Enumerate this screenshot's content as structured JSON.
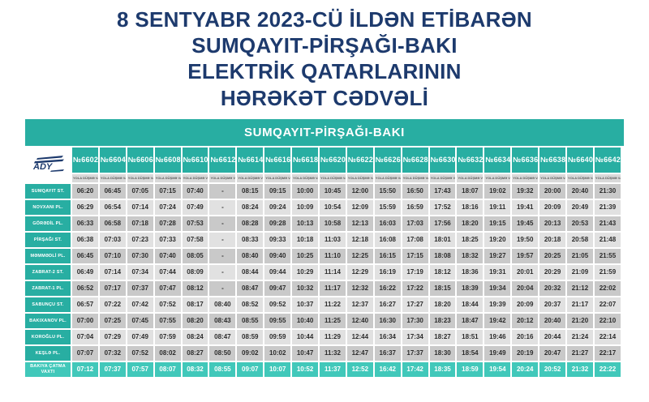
{
  "title": {
    "lines": [
      "8 SENTYABR 2023-CÜ İLDƏN ETİBARƏN",
      "SUMQAYIT-PİRŞAĞI-BAKI",
      "ELEKTRİK QATARLARININ",
      "HƏRƏKƏT CƏDVƏLİ"
    ]
  },
  "colors": {
    "title_navy": "#1d3a6d",
    "accent_teal": "#28aea2",
    "arrival_teal": "#41c8ba",
    "row_dark": "#c9c9c9",
    "row_light": "#e1e1e1"
  },
  "table": {
    "banner": "SUMQAYIT-PİRŞAĞI-BAKI",
    "logo": "ADY",
    "departure_label": "YOLA DÜŞMƏ VAXTI",
    "trains": [
      "№6602",
      "№6604",
      "№6606",
      "№6608",
      "№6610",
      "№6612",
      "№6614",
      "№6616",
      "№6618",
      "№6620",
      "№6622",
      "№6626",
      "№6628",
      "№6630",
      "№6632",
      "№6634",
      "№6636",
      "№6638",
      "№6640",
      "№6642"
    ],
    "stations": [
      {
        "name": "SUMQAYIT ST.",
        "times": [
          "06:20",
          "06:45",
          "07:05",
          "07:15",
          "07:40",
          "-",
          "08:15",
          "09:15",
          "10:00",
          "10:45",
          "12:00",
          "15:50",
          "16:50",
          "17:43",
          "18:07",
          "19:02",
          "19:32",
          "20:00",
          "20:40",
          "21:30"
        ]
      },
      {
        "name": "NOVXANI PL.",
        "times": [
          "06:29",
          "06:54",
          "07:14",
          "07:24",
          "07:49",
          "-",
          "08:24",
          "09:24",
          "10:09",
          "10:54",
          "12:09",
          "15:59",
          "16:59",
          "17:52",
          "18:16",
          "19:11",
          "19:41",
          "20:09",
          "20:49",
          "21:39"
        ]
      },
      {
        "name": "GÖRƏDİL PL.",
        "times": [
          "06:33",
          "06:58",
          "07:18",
          "07:28",
          "07:53",
          "-",
          "08:28",
          "09:28",
          "10:13",
          "10:58",
          "12:13",
          "16:03",
          "17:03",
          "17:56",
          "18:20",
          "19:15",
          "19:45",
          "20:13",
          "20:53",
          "21:43"
        ]
      },
      {
        "name": "PİRŞAĞI ST.",
        "times": [
          "06:38",
          "07:03",
          "07:23",
          "07:33",
          "07:58",
          "-",
          "08:33",
          "09:33",
          "10:18",
          "11:03",
          "12:18",
          "16:08",
          "17:08",
          "18:01",
          "18:25",
          "19:20",
          "19:50",
          "20:18",
          "20:58",
          "21:48"
        ]
      },
      {
        "name": "MƏMMƏDLİ PL.",
        "times": [
          "06:45",
          "07:10",
          "07:30",
          "07:40",
          "08:05",
          "-",
          "08:40",
          "09:40",
          "10:25",
          "11:10",
          "12:25",
          "16:15",
          "17:15",
          "18:08",
          "18:32",
          "19:27",
          "19:57",
          "20:25",
          "21:05",
          "21:55"
        ]
      },
      {
        "name": "ZABRAT-2 ST.",
        "times": [
          "06:49",
          "07:14",
          "07:34",
          "07:44",
          "08:09",
          "-",
          "08:44",
          "09:44",
          "10:29",
          "11:14",
          "12:29",
          "16:19",
          "17:19",
          "18:12",
          "18:36",
          "19:31",
          "20:01",
          "20:29",
          "21:09",
          "21:59"
        ]
      },
      {
        "name": "ZABRAT-1 PL.",
        "times": [
          "06:52",
          "07:17",
          "07:37",
          "07:47",
          "08:12",
          "-",
          "08:47",
          "09:47",
          "10:32",
          "11:17",
          "12:32",
          "16:22",
          "17:22",
          "18:15",
          "18:39",
          "19:34",
          "20:04",
          "20:32",
          "21:12",
          "22:02"
        ]
      },
      {
        "name": "SABUNÇU ST.",
        "times": [
          "06:57",
          "07:22",
          "07:42",
          "07:52",
          "08:17",
          "08:40",
          "08:52",
          "09:52",
          "10:37",
          "11:22",
          "12:37",
          "16:27",
          "17:27",
          "18:20",
          "18:44",
          "19:39",
          "20:09",
          "20:37",
          "21:17",
          "22:07"
        ]
      },
      {
        "name": "BAKIXANOV PL.",
        "times": [
          "07:00",
          "07:25",
          "07:45",
          "07:55",
          "08:20",
          "08:43",
          "08:55",
          "09:55",
          "10:40",
          "11:25",
          "12:40",
          "16:30",
          "17:30",
          "18:23",
          "18:47",
          "19:42",
          "20:12",
          "20:40",
          "21:20",
          "22:10"
        ]
      },
      {
        "name": "KOROĞLU PL.",
        "times": [
          "07:04",
          "07:29",
          "07:49",
          "07:59",
          "08:24",
          "08:47",
          "08:59",
          "09:59",
          "10:44",
          "11:29",
          "12:44",
          "16:34",
          "17:34",
          "18:27",
          "18:51",
          "19:46",
          "20:16",
          "20:44",
          "21:24",
          "22:14"
        ]
      },
      {
        "name": "KEŞLƏ PL.",
        "times": [
          "07:07",
          "07:32",
          "07:52",
          "08:02",
          "08:27",
          "08:50",
          "09:02",
          "10:02",
          "10:47",
          "11:32",
          "12:47",
          "16:37",
          "17:37",
          "18:30",
          "18:54",
          "19:49",
          "20:19",
          "20:47",
          "21:27",
          "22:17"
        ]
      }
    ],
    "arrival": {
      "name": "BAKIYA ÇATMA VAXTI",
      "times": [
        "07:12",
        "07:37",
        "07:57",
        "08:07",
        "08:32",
        "08:55",
        "09:07",
        "10:07",
        "10:52",
        "11:37",
        "12:52",
        "16:42",
        "17:42",
        "18:35",
        "18:59",
        "19:54",
        "20:24",
        "20:52",
        "21:32",
        "22:22"
      ]
    }
  }
}
